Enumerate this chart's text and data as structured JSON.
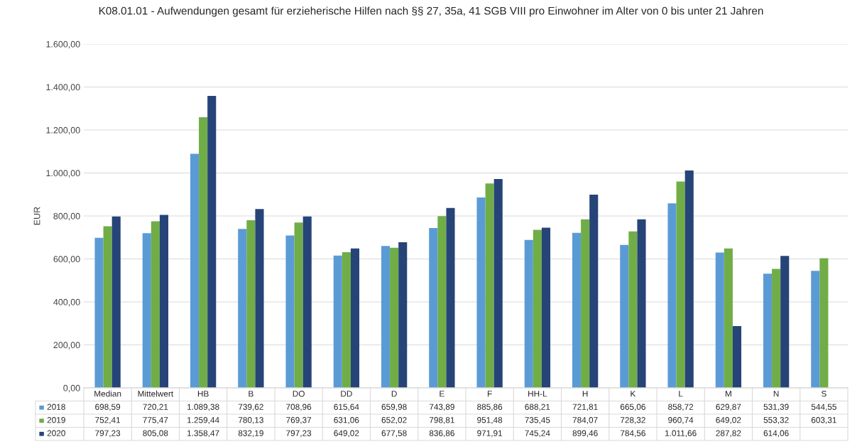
{
  "chart_data": {
    "type": "bar",
    "title": "K08.01.01 - Aufwendungen gesamt für erzieherische Hilfen nach §§ 27, 35a, 41 SGB VIII pro Einwohner im Alter von 0 bis unter 21 Jahren",
    "ylabel": "EUR",
    "categories": [
      "Median",
      "Mittelwert",
      "HB",
      "B",
      "DO",
      "DD",
      "D",
      "E",
      "F",
      "HH-L",
      "H",
      "K",
      "L",
      "M",
      "N",
      "S"
    ],
    "series": [
      {
        "name": "2018",
        "color": "#5b9bd5",
        "values": [
          698.59,
          720.21,
          1089.38,
          739.62,
          708.96,
          615.64,
          659.98,
          743.89,
          885.86,
          688.21,
          721.81,
          665.06,
          858.72,
          629.87,
          531.39,
          544.55
        ],
        "value_labels": [
          "698,59",
          "720,21",
          "1.089,38",
          "739,62",
          "708,96",
          "615,64",
          "659,98",
          "743,89",
          "885,86",
          "688,21",
          "721,81",
          "665,06",
          "858,72",
          "629,87",
          "531,39",
          "544,55"
        ]
      },
      {
        "name": "2019",
        "color": "#70ad47",
        "values": [
          752.41,
          775.47,
          1259.44,
          780.13,
          769.37,
          631.06,
          652.02,
          798.81,
          951.48,
          735.45,
          784.07,
          728.32,
          960.74,
          649.02,
          553.32,
          603.31
        ],
        "value_labels": [
          "752,41",
          "775,47",
          "1.259,44",
          "780,13",
          "769,37",
          "631,06",
          "652,02",
          "798,81",
          "951,48",
          "735,45",
          "784,07",
          "728,32",
          "960,74",
          "649,02",
          "553,32",
          "603,31"
        ]
      },
      {
        "name": "2020",
        "color": "#264478",
        "values": [
          797.23,
          805.08,
          1358.47,
          832.19,
          797.23,
          649.02,
          677.58,
          836.86,
          971.91,
          745.24,
          899.46,
          784.56,
          1011.66,
          287.82,
          614.06,
          null
        ],
        "value_labels": [
          "797,23",
          "805,08",
          "1.358,47",
          "832,19",
          "797,23",
          "649,02",
          "677,58",
          "836,86",
          "971,91",
          "745,24",
          "899,46",
          "784,56",
          "1.011,66",
          "287,82",
          "614,06",
          null
        ]
      }
    ],
    "ylim": [
      0,
      1600
    ],
    "yticks": [
      {
        "value": 0,
        "label": "0,00"
      },
      {
        "value": 200,
        "label": "200,00"
      },
      {
        "value": 400,
        "label": "400,00"
      },
      {
        "value": 600,
        "label": "600,00"
      },
      {
        "value": 800,
        "label": "800,00"
      },
      {
        "value": 1000,
        "label": "1.000,00"
      },
      {
        "value": 1200,
        "label": "1.200,00"
      },
      {
        "value": 1400,
        "label": "1.400,00"
      },
      {
        "value": 1600,
        "label": "1.600,00"
      }
    ],
    "grid": "y",
    "legend": "bottom"
  }
}
